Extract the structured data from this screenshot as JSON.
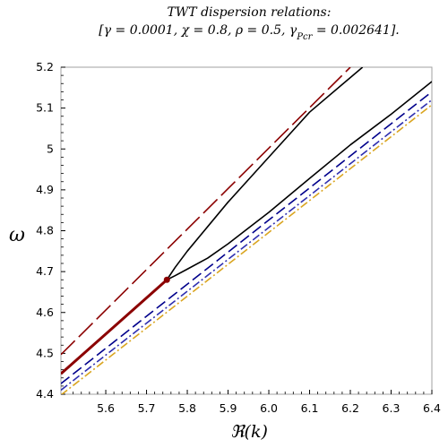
{
  "chart_data": {
    "type": "line",
    "title_line1": "TWT dispersion relations:",
    "title_line2": "[γ = 0.0001, χ = 0.8, ρ = 0.5, γPcr = 0.002641].",
    "title_parts": [
      {
        "text": "[γ = 0.0001, χ = 0.8, ρ = 0.5, γ",
        "sub": false
      },
      {
        "text": "Pcr",
        "sub": true
      },
      {
        "text": " = 0.002641].",
        "sub": false
      }
    ],
    "xlabel": "ℜ(k)",
    "ylabel": "ω",
    "xlim": [
      5.49,
      6.4
    ],
    "ylim": [
      4.4,
      5.2
    ],
    "x_ticks": [
      "5.6",
      "5.7",
      "5.8",
      "5.9",
      "6.0",
      "6.1",
      "6.2",
      "6.3",
      "6.4"
    ],
    "y_ticks": [
      "4.4",
      "4.5",
      "4.6",
      "4.7",
      "4.8",
      "4.9",
      "5",
      "5.1",
      "5.2"
    ],
    "x_tick_values": [
      5.6,
      5.7,
      5.8,
      5.9,
      6.0,
      6.1,
      6.2,
      6.3,
      6.4
    ],
    "y_tick_values": [
      4.4,
      4.5,
      4.6,
      4.7,
      4.8,
      4.9,
      5.0,
      5.1,
      5.2
    ],
    "grid": false,
    "series": [
      {
        "color": "#8b0000",
        "style": "long-dash",
        "points": [
          [
            5.49,
            4.497
          ],
          [
            6.2,
            5.2
          ]
        ]
      },
      {
        "color": "#000000",
        "style": "solid",
        "points": [
          [
            5.75,
            4.68
          ],
          [
            5.77,
            4.71
          ],
          [
            5.8,
            4.75
          ],
          [
            5.85,
            4.81
          ],
          [
            5.9,
            4.87
          ],
          [
            6.0,
            4.98
          ],
          [
            6.1,
            5.09
          ],
          [
            6.23,
            5.2
          ]
        ]
      },
      {
        "color": "#000000",
        "style": "solid",
        "points": [
          [
            5.75,
            4.68
          ],
          [
            5.77,
            4.69
          ],
          [
            5.8,
            4.706
          ],
          [
            5.85,
            4.733
          ],
          [
            5.9,
            4.768
          ],
          [
            6.0,
            4.845
          ],
          [
            6.1,
            4.928
          ],
          [
            6.2,
            5.01
          ],
          [
            6.3,
            5.085
          ],
          [
            6.4,
            5.165
          ]
        ]
      },
      {
        "color": "#8b0000",
        "style": "solid-thick",
        "points": [
          [
            5.49,
            4.45
          ],
          [
            5.75,
            4.68
          ]
        ]
      },
      {
        "color": "#00008b",
        "style": "dash",
        "points": [
          [
            5.49,
            4.426
          ],
          [
            6.4,
            5.14
          ]
        ]
      },
      {
        "color": "#2f2fb0",
        "style": "dash-dot",
        "points": [
          [
            5.49,
            4.41
          ],
          [
            6.4,
            5.12
          ]
        ]
      },
      {
        "color": "#daa520",
        "style": "dash-dot",
        "points": [
          [
            5.49,
            4.398
          ],
          [
            6.4,
            5.108
          ]
        ]
      }
    ],
    "marker": {
      "color": "#8b0000",
      "point": [
        5.75,
        4.68
      ]
    }
  }
}
